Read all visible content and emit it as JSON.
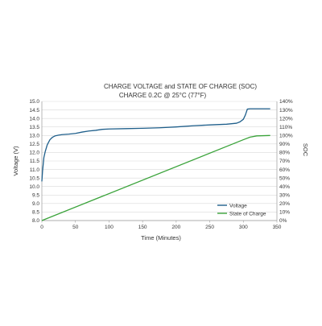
{
  "chart_data": {
    "type": "line",
    "title": "CHARGE VOLTAGE and STATE OF CHARGE (SOC)",
    "subtitle": "CHARGE 0.2C @ 25°C (77°F)",
    "xlabel": "Time (Minutes)",
    "ylabel": "Voltage (V)",
    "ylabel_right": "SOC",
    "xlim": [
      0,
      350
    ],
    "ylim": [
      8.0,
      15.0
    ],
    "ylim_right": [
      0,
      140
    ],
    "x_ticks": [
      "0",
      "50",
      "100",
      "150",
      "200",
      "250",
      "300",
      "350"
    ],
    "y_ticks": [
      "8.0",
      "8.5",
      "9.0",
      "9.5",
      "10.0",
      "10.5",
      "11.0",
      "11.5",
      "12.0",
      "12.5",
      "13.0",
      "13.5",
      "14.0",
      "14.5",
      "15.0"
    ],
    "y_ticks_right": [
      "0%",
      "10%",
      "20%",
      "30%",
      "40%",
      "50%",
      "60%",
      "70%",
      "80%",
      "90%",
      "100%",
      "110%",
      "120%",
      "130%",
      "140%"
    ],
    "grid": "horizontal",
    "legend_position": "bottom-right",
    "series": [
      {
        "name": "Voltage",
        "axis": "left",
        "color": "#1f5f8b",
        "x": [
          0,
          1,
          2,
          3,
          5,
          8,
          12,
          16,
          20,
          25,
          30,
          40,
          50,
          60,
          70,
          80,
          90,
          100,
          125,
          150,
          175,
          200,
          225,
          250,
          275,
          290,
          295,
          300,
          303,
          306,
          310,
          320,
          340
        ],
        "y": [
          10.3,
          10.9,
          11.3,
          11.7,
          12.05,
          12.45,
          12.75,
          12.9,
          12.98,
          13.02,
          13.05,
          13.08,
          13.12,
          13.2,
          13.26,
          13.3,
          13.36,
          13.38,
          13.4,
          13.42,
          13.45,
          13.5,
          13.57,
          13.62,
          13.66,
          13.72,
          13.8,
          13.95,
          14.2,
          14.55,
          14.57,
          14.57,
          14.57
        ]
      },
      {
        "name": "State of Charge",
        "axis": "right",
        "color": "#3aa33a",
        "x": [
          0,
          300,
          310,
          320,
          340
        ],
        "y": [
          0,
          95,
          98,
          99.5,
          100
        ]
      }
    ]
  }
}
